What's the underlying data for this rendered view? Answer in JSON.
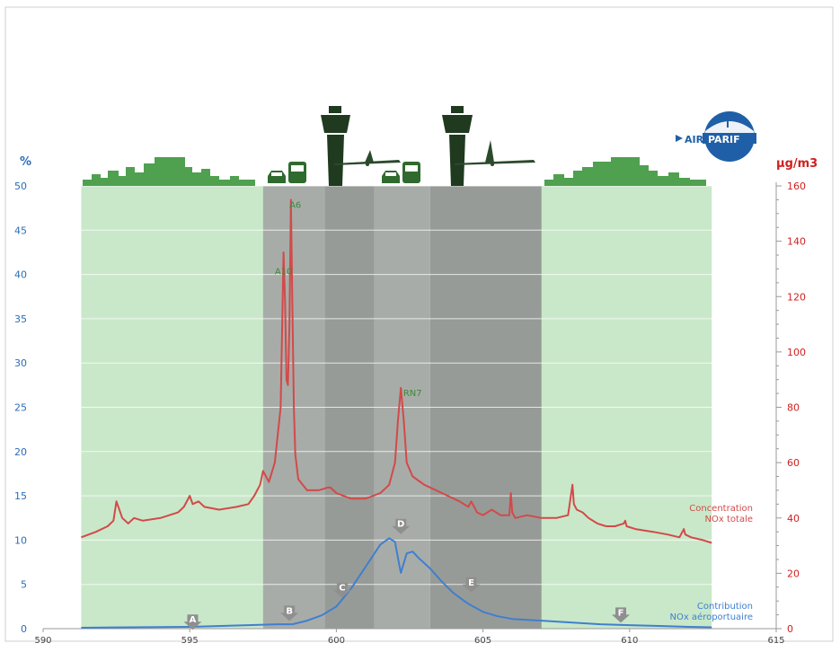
{
  "brand": {
    "name": "AIRPARIF",
    "prefix": "AIR",
    "suffix": "PARIF",
    "color": "#1f5fa8"
  },
  "colors": {
    "zone_green": "#c9e8c9",
    "zone_grey": "#a8aca8",
    "zone_grey_dark": "#979b97",
    "nox_total": "#d24a4a",
    "nox_airport": "#3f7fcf",
    "left_axis": "#2d6db5",
    "right_axis": "#d02020",
    "label_green": "#3a8a3a",
    "marker": "#8f8f8f"
  },
  "icons": [
    "city-skyline-icon",
    "car-icon",
    "bus-icon",
    "control-tower-icon",
    "airplane-icon"
  ],
  "chart_data": {
    "type": "line",
    "x_ticks": [
      590,
      595,
      600,
      605,
      610,
      615
    ],
    "xlim": [
      590,
      615
    ],
    "left_axis": {
      "unit_label": "%",
      "ylim": [
        0,
        50
      ],
      "ticks": [
        0,
        5,
        10,
        15,
        20,
        25,
        30,
        35,
        40,
        45,
        50
      ]
    },
    "right_axis": {
      "unit_label": "µg/m3",
      "ylim": [
        0,
        160
      ],
      "ticks": [
        0,
        20,
        40,
        60,
        80,
        100,
        120,
        140,
        160
      ]
    },
    "zones": [
      {
        "from": 591.3,
        "to": 597.5,
        "kind": "green"
      },
      {
        "from": 597.5,
        "to": 599.6,
        "kind": "grey"
      },
      {
        "from": 599.6,
        "to": 601.3,
        "kind": "grey_dark"
      },
      {
        "from": 601.3,
        "to": 603.2,
        "kind": "grey"
      },
      {
        "from": 603.2,
        "to": 607.0,
        "kind": "grey_dark"
      },
      {
        "from": 607.0,
        "to": 612.8,
        "kind": "green"
      }
    ],
    "series": [
      {
        "name": "Concentration NOx totale",
        "name_lines": [
          "Concentration",
          "NOx totale"
        ],
        "axis": "right",
        "x": [
          591.3,
          591.8,
          592.2,
          592.4,
          592.5,
          592.7,
          592.9,
          593.1,
          593.4,
          594.0,
          594.6,
          594.8,
          595.0,
          595.1,
          595.3,
          595.5,
          596.0,
          596.6,
          597.0,
          597.2,
          597.4,
          597.5,
          597.7,
          597.9,
          598.1,
          598.2,
          598.25,
          598.3,
          598.35,
          598.4,
          598.45,
          598.5,
          598.55,
          598.6,
          598.7,
          599.0,
          599.4,
          599.7,
          599.8,
          600.0,
          600.5,
          601.0,
          601.5,
          601.8,
          602.0,
          602.1,
          602.2,
          602.3,
          602.4,
          602.6,
          603.0,
          603.6,
          604.2,
          604.5,
          604.6,
          604.8,
          605.0,
          605.3,
          605.6,
          605.9,
          605.95,
          606.0,
          606.1,
          606.5,
          607.0,
          607.5,
          607.9,
          608.05,
          608.1,
          608.2,
          608.4,
          608.6,
          608.9,
          609.2,
          609.5,
          609.8,
          609.85,
          609.9,
          610.2,
          610.8,
          611.3,
          611.7,
          611.85,
          611.9,
          612.1,
          612.5,
          612.8
        ],
        "y": [
          33,
          35,
          37,
          39,
          46,
          40,
          38,
          40,
          39,
          40,
          42,
          44,
          48,
          45,
          46,
          44,
          43,
          44,
          45,
          48,
          52,
          57,
          53,
          60,
          80,
          136,
          118,
          90,
          88,
          110,
          155,
          118,
          80,
          63,
          54,
          50,
          50,
          51,
          51,
          49,
          47,
          47,
          49,
          52,
          60,
          75,
          87,
          75,
          60,
          55,
          52,
          49,
          46,
          44,
          46,
          42,
          41,
          43,
          41,
          41,
          49,
          42,
          40,
          41,
          40,
          40,
          41,
          52,
          45,
          43,
          42,
          40,
          38,
          37,
          37,
          38,
          39,
          37,
          36,
          35,
          34,
          33,
          36,
          34,
          33,
          32,
          31
        ]
      },
      {
        "name": "Contribution NOx aéroportuaire",
        "name_lines": [
          "Contribution",
          "NOx aéroportuaire"
        ],
        "axis": "left",
        "x": [
          591.3,
          593.0,
          595.0,
          597.0,
          598.0,
          598.5,
          599.0,
          599.5,
          600.0,
          600.5,
          601.0,
          601.5,
          601.8,
          602.0,
          602.1,
          602.2,
          602.4,
          602.6,
          602.8,
          603.2,
          603.6,
          604.0,
          604.5,
          605.0,
          605.5,
          606.0,
          607.0,
          608.0,
          609.0,
          610.0,
          611.0,
          612.0,
          612.8
        ],
        "y": [
          0.1,
          0.15,
          0.2,
          0.4,
          0.5,
          0.5,
          0.9,
          1.5,
          2.5,
          4.5,
          7.0,
          9.5,
          10.2,
          9.8,
          8.0,
          6.3,
          8.5,
          8.7,
          8.0,
          6.8,
          5.3,
          4.0,
          2.8,
          1.9,
          1.4,
          1.1,
          0.9,
          0.7,
          0.5,
          0.4,
          0.3,
          0.2,
          0.15
        ]
      }
    ],
    "annotations": [
      {
        "text": "A10",
        "x": 598.2,
        "y_right": 128
      },
      {
        "text": "A6",
        "x": 598.6,
        "y_right": 152
      },
      {
        "text": "RN7",
        "x": 602.6,
        "y_right": 84
      }
    ],
    "markers": [
      {
        "text": "A",
        "x": 595.1,
        "y_left": 1.6
      },
      {
        "text": "B",
        "x": 598.4,
        "y_left": 2.6
      },
      {
        "text": "C",
        "x": 600.2,
        "y_left": 5.2
      },
      {
        "text": "D",
        "x": 602.2,
        "y_left": 12.4
      },
      {
        "text": "E",
        "x": 604.6,
        "y_left": 5.8
      },
      {
        "text": "F",
        "x": 609.7,
        "y_left": 2.4
      }
    ]
  }
}
